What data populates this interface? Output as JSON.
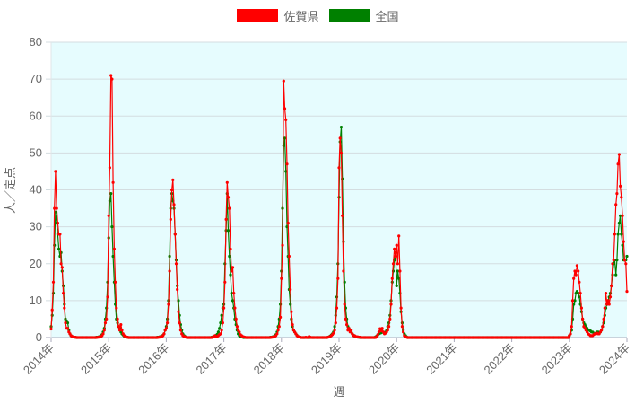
{
  "legend": {
    "saga": {
      "label": "佐賀県",
      "color": "#ff0000"
    },
    "national": {
      "label": "全国",
      "color": "#008000"
    }
  },
  "chart_data": {
    "type": "line",
    "xlabel": "週",
    "ylabel": "人／定点",
    "ylim": [
      0,
      80
    ],
    "yticks": [
      "0",
      "10",
      "20",
      "30",
      "40",
      "50",
      "60",
      "70",
      "80"
    ],
    "xticks": [
      "2014年",
      "2015年",
      "2016年",
      "2017年",
      "2018年",
      "2019年",
      "2020年",
      "2021年",
      "2022年",
      "2023年",
      "2024年"
    ],
    "grid": true,
    "legend_position": "top",
    "plot_background": "#e6fcfe",
    "frequency": "weekly",
    "series_names": [
      "佐賀県",
      "全国"
    ],
    "years": [
      {
        "year": 2014,
        "saga": [
          2.3,
          7.5,
          15,
          35,
          45,
          35,
          31,
          28,
          28,
          20,
          19,
          12,
          8,
          4,
          2.5,
          2.5,
          1.5,
          1,
          0.5,
          0.3,
          0.2,
          0.1,
          0.1,
          0,
          0,
          0,
          0,
          0,
          0,
          0,
          0,
          0,
          0,
          0,
          0,
          0,
          0,
          0,
          0,
          0,
          0,
          0,
          0.1,
          0.1,
          0.2,
          0.3,
          0.5,
          1,
          2,
          4,
          5,
          11
        ],
        "national": [
          3,
          6,
          12,
          25,
          34,
          31,
          28,
          24,
          22,
          23,
          18,
          14,
          9,
          5,
          4.5,
          4,
          2,
          1,
          0.5,
          0.3,
          0.2,
          0.1,
          0.1,
          0,
          0,
          0,
          0,
          0,
          0,
          0,
          0,
          0,
          0,
          0,
          0,
          0,
          0,
          0,
          0,
          0,
          0,
          0.1,
          0.1,
          0.2,
          0.3,
          0.5,
          0.8,
          1.5,
          2.5,
          5,
          8,
          15
        ]
      },
      {
        "year": 2015,
        "saga": [
          33,
          46,
          71,
          70,
          42,
          24,
          15,
          8,
          5,
          3,
          2,
          3.5,
          2,
          1,
          0.5,
          0.3,
          0.2,
          0.1,
          0,
          0,
          0,
          0,
          0,
          0,
          0,
          0,
          0,
          0,
          0,
          0,
          0,
          0,
          0,
          0,
          0,
          0,
          0,
          0,
          0,
          0,
          0,
          0,
          0,
          0,
          0,
          0.1,
          0.1,
          0.2,
          0.3,
          0.5,
          1,
          2
        ],
        "national": [
          27,
          37,
          39,
          30,
          22,
          15,
          9,
          5,
          4,
          3,
          2.5,
          1.5,
          1,
          0.7,
          0.4,
          0.2,
          0.1,
          0.1,
          0,
          0,
          0,
          0,
          0,
          0,
          0,
          0,
          0,
          0,
          0,
          0,
          0,
          0,
          0,
          0,
          0,
          0,
          0,
          0,
          0,
          0,
          0,
          0,
          0,
          0,
          0.1,
          0.1,
          0.2,
          0.3,
          0.4,
          0.6,
          1,
          2
        ]
      },
      {
        "year": 2016,
        "saga": [
          2.5,
          4,
          9,
          18,
          32,
          40,
          42.7,
          36,
          28,
          20,
          13,
          7,
          4,
          2,
          1,
          0.5,
          0.3,
          0.2,
          0.1,
          0,
          0,
          0,
          0,
          0,
          0,
          0,
          0,
          0,
          0,
          0,
          0,
          0,
          0,
          0,
          0,
          0,
          0,
          0,
          0,
          0,
          0,
          0,
          0.1,
          0.2,
          0.5,
          0.3,
          0.3,
          0.5,
          0.8,
          1,
          2,
          4
        ],
        "national": [
          3,
          5,
          10,
          22,
          35,
          39,
          37,
          35,
          28,
          21,
          14,
          10,
          6,
          3.5,
          2,
          1,
          0.5,
          0.3,
          0.1,
          0,
          0,
          0,
          0,
          0,
          0,
          0,
          0,
          0,
          0,
          0,
          0,
          0,
          0,
          0,
          0,
          0,
          0,
          0,
          0,
          0,
          0,
          0.1,
          0.2,
          0.3,
          0.4,
          0.6,
          0.9,
          1.5,
          2.5,
          4,
          6,
          8
        ]
      },
      {
        "year": 2017,
        "saga": [
          8,
          15,
          32,
          42,
          38,
          35,
          24,
          18,
          19,
          12,
          8,
          5,
          3,
          2,
          1.5,
          0.8,
          0.5,
          0.3,
          0.2,
          0.1,
          0,
          0,
          0,
          0,
          0,
          0,
          0,
          0,
          0,
          0,
          0,
          0,
          0,
          0,
          0,
          0,
          0,
          0,
          0,
          0,
          0,
          0,
          0,
          0.1,
          0.1,
          0.2,
          0.3,
          0.5,
          1,
          2,
          3,
          5.5
        ],
        "national": [
          9,
          20,
          29,
          39,
          29,
          22,
          17,
          12,
          10,
          8,
          5,
          3.5,
          2,
          1,
          0.5,
          0.3,
          0.2,
          0.1,
          0,
          0,
          0,
          0,
          0,
          0,
          0,
          0,
          0,
          0,
          0,
          0,
          0,
          0,
          0,
          0,
          0,
          0,
          0,
          0,
          0,
          0,
          0,
          0,
          0.1,
          0.1,
          0.2,
          0.3,
          0.5,
          0.8,
          1.5,
          3,
          5,
          9
        ]
      },
      {
        "year": 2018,
        "saga": [
          16,
          25,
          69.5,
          62,
          59,
          47,
          31,
          22,
          13,
          7,
          3.5,
          2,
          1.5,
          1,
          0.5,
          0.3,
          0.2,
          0.1,
          0,
          0,
          0,
          0,
          0.1,
          0,
          0,
          0.3,
          0.1,
          0,
          0,
          0,
          0,
          0,
          0,
          0,
          0,
          0,
          0,
          0,
          0,
          0,
          0,
          0,
          0.1,
          0.2,
          0.3,
          0.5,
          0.8,
          1.2,
          2,
          4,
          8,
          16
        ],
        "national": [
          18,
          35,
          52,
          54,
          45,
          30,
          22,
          13,
          9,
          5,
          3,
          2,
          1.5,
          1,
          0.6,
          0.3,
          0.2,
          0.1,
          0,
          0,
          0,
          0,
          0,
          0,
          0,
          0,
          0,
          0,
          0,
          0,
          0,
          0,
          0,
          0,
          0,
          0,
          0,
          0,
          0,
          0,
          0,
          0,
          0.1,
          0.2,
          0.4,
          0.7,
          1,
          1.5,
          3,
          6,
          11,
          20
        ]
      },
      {
        "year": 2019,
        "saga": [
          46,
          54,
          50,
          33,
          18,
          9,
          5,
          3.5,
          2,
          2.5,
          1.5,
          2,
          1,
          0.5,
          0.5,
          0.3,
          0.2,
          0.2,
          0.1,
          0.1,
          0,
          0,
          0,
          0,
          0,
          0,
          0,
          0,
          0,
          0,
          0,
          0,
          0,
          0,
          0.3,
          0.8,
          1.5,
          2.4,
          1.8,
          2.5,
          1.5,
          1,
          1.2,
          1.5,
          2,
          3,
          5,
          9,
          16,
          20,
          24,
          22
        ],
        "national": [
          38,
          53,
          57,
          43,
          26,
          15,
          8,
          5,
          3,
          2.5,
          2,
          1.5,
          1,
          0.6,
          0.4,
          0.3,
          0.2,
          0.1,
          0.1,
          0,
          0,
          0,
          0,
          0,
          0,
          0,
          0,
          0,
          0,
          0,
          0,
          0,
          0,
          0.2,
          0.4,
          0.7,
          1,
          1.2,
          1.3,
          1.5,
          1.4,
          1.3,
          1.5,
          2,
          3,
          4,
          6,
          10,
          15,
          18,
          21,
          23
        ]
      },
      {
        "year": 2020,
        "saga": [
          25,
          20,
          27.5,
          18,
          8,
          3,
          1.5,
          0.5,
          0.2,
          0.1,
          0,
          0,
          0,
          0,
          0,
          0,
          0,
          0,
          0,
          0,
          0,
          0,
          0,
          0,
          0,
          0,
          0,
          0,
          0,
          0,
          0,
          0,
          0,
          0,
          0,
          0,
          0,
          0,
          0,
          0,
          0,
          0,
          0,
          0,
          0,
          0,
          0,
          0,
          0,
          0,
          0,
          0
        ],
        "national": [
          14,
          18,
          16,
          12,
          7,
          4,
          2,
          1,
          0.5,
          0.2,
          0,
          0,
          0,
          0,
          0,
          0,
          0,
          0,
          0,
          0,
          0,
          0,
          0,
          0,
          0,
          0,
          0,
          0,
          0,
          0,
          0,
          0,
          0,
          0,
          0,
          0,
          0,
          0,
          0,
          0,
          0,
          0,
          0,
          0,
          0,
          0,
          0,
          0,
          0,
          0,
          0,
          0
        ]
      },
      {
        "year": 2021,
        "saga": [
          0,
          0,
          0,
          0,
          0,
          0,
          0,
          0,
          0,
          0,
          0,
          0,
          0,
          0,
          0,
          0,
          0,
          0,
          0,
          0,
          0,
          0,
          0,
          0,
          0,
          0,
          0,
          0,
          0,
          0,
          0,
          0,
          0,
          0,
          0,
          0,
          0,
          0,
          0,
          0,
          0,
          0,
          0,
          0,
          0,
          0,
          0,
          0,
          0,
          0,
          0,
          0
        ],
        "national": [
          0,
          0,
          0,
          0,
          0,
          0,
          0,
          0,
          0,
          0,
          0,
          0,
          0,
          0,
          0,
          0,
          0,
          0,
          0,
          0,
          0,
          0,
          0,
          0,
          0,
          0,
          0,
          0,
          0,
          0,
          0,
          0,
          0,
          0,
          0,
          0,
          0,
          0,
          0,
          0,
          0,
          0,
          0,
          0,
          0,
          0,
          0,
          0,
          0,
          0,
          0,
          0
        ]
      },
      {
        "year": 2022,
        "saga": [
          0,
          0,
          0,
          0,
          0,
          0,
          0,
          0,
          0,
          0,
          0,
          0,
          0,
          0,
          0,
          0,
          0,
          0,
          0,
          0,
          0,
          0,
          0,
          0,
          0,
          0,
          0,
          0,
          0,
          0,
          0,
          0,
          0,
          0,
          0,
          0,
          0,
          0,
          0,
          0,
          0,
          0,
          0,
          0,
          0,
          0,
          0,
          0,
          0,
          0,
          0,
          0
        ],
        "national": [
          0,
          0,
          0,
          0,
          0,
          0,
          0,
          0,
          0,
          0,
          0,
          0,
          0,
          0,
          0,
          0,
          0,
          0,
          0,
          0,
          0,
          0,
          0,
          0,
          0,
          0,
          0,
          0,
          0,
          0,
          0,
          0,
          0,
          0,
          0,
          0,
          0,
          0,
          0,
          0,
          0,
          0,
          0,
          0,
          0,
          0,
          0,
          0,
          0,
          0,
          0,
          0
        ]
      },
      {
        "year": 2023,
        "saga": [
          0.5,
          1,
          3,
          10,
          16,
          18,
          17,
          19.5,
          18,
          15,
          12,
          8,
          5,
          3,
          2.5,
          2,
          1.5,
          1,
          0.8,
          0.5,
          0.5,
          0.5,
          0.8,
          1,
          1,
          1.2,
          1,
          1,
          1.5,
          2,
          3,
          5,
          8,
          12,
          9,
          10,
          9,
          11,
          14,
          20,
          21,
          28,
          36,
          39,
          47,
          49.6,
          41,
          38,
          33,
          26,
          21,
          20
        ],
        "national": [
          0.5,
          1,
          2,
          5,
          9,
          10,
          12,
          12.5,
          12,
          11,
          9,
          7,
          5,
          4,
          3.5,
          3,
          2.5,
          2,
          2,
          1.8,
          1.5,
          1.5,
          1.2,
          1,
          1.2,
          1.5,
          1.5,
          1.2,
          1.5,
          2,
          3,
          4,
          6,
          8,
          9,
          10,
          11,
          12,
          14,
          17,
          20,
          21,
          17,
          21,
          28,
          31,
          33,
          28,
          25,
          21,
          21,
          21
        ]
      },
      {
        "year": 2024,
        "saga": [
          12.5
        ],
        "national": [
          22
        ]
      }
    ]
  }
}
